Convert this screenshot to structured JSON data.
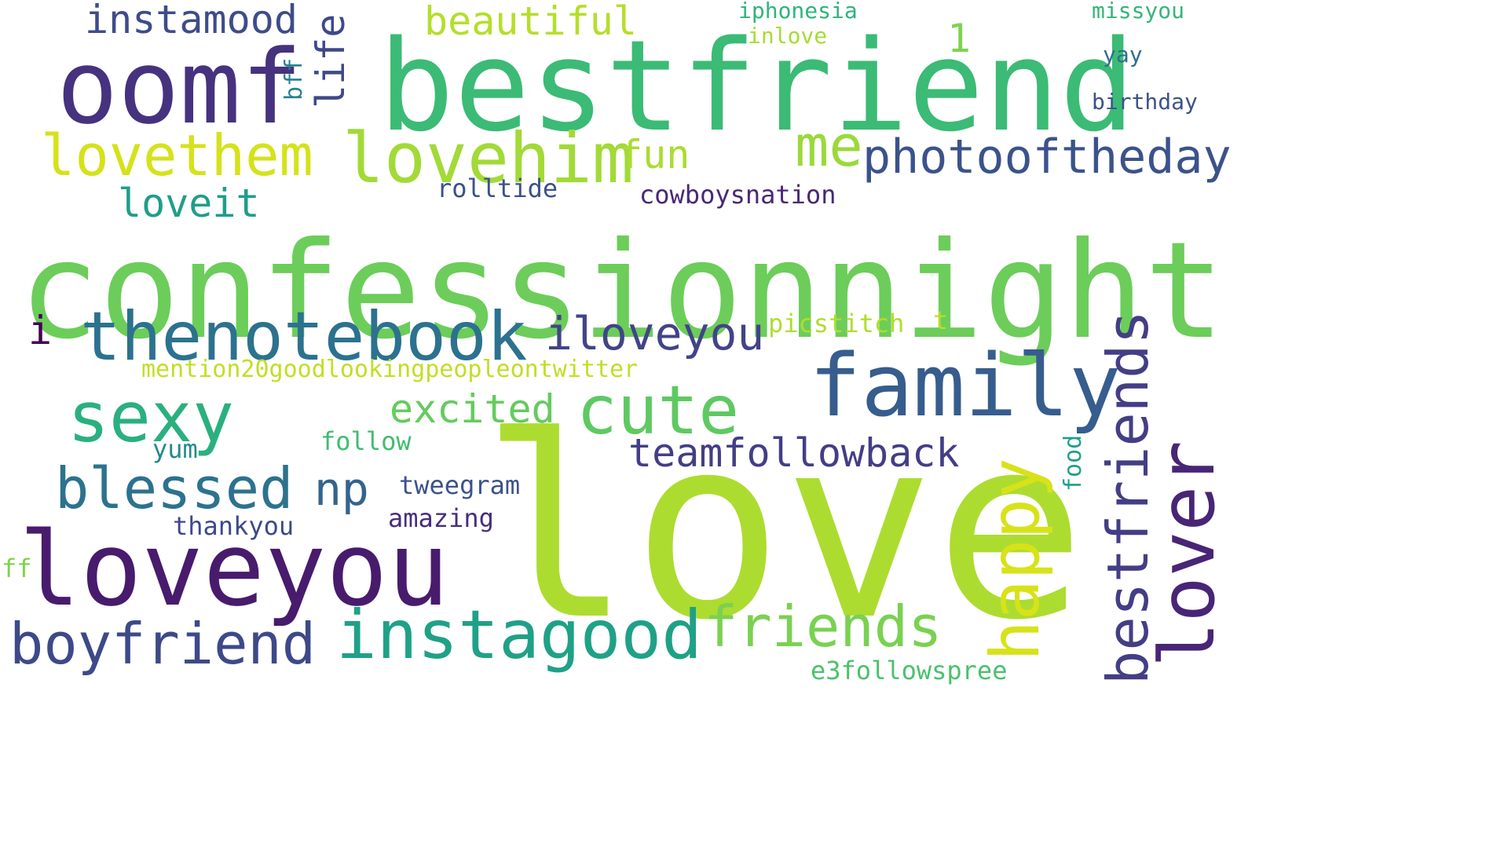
{
  "words": [
    {
      "text": "confessionnight",
      "color": "#6ccd5a"
    },
    {
      "text": "love",
      "color": "#addc30"
    },
    {
      "text": "bestfriend",
      "color": "#3bbb75"
    },
    {
      "text": "oomf",
      "color": "#46327e"
    },
    {
      "text": "loveyou",
      "color": "#481b6d"
    },
    {
      "text": "family",
      "color": "#365d8d"
    },
    {
      "text": "lovehim",
      "color": "#a2da37"
    },
    {
      "text": "lovethem",
      "color": "#d5e21a"
    },
    {
      "text": "thenotebook",
      "color": "#2c728e"
    },
    {
      "text": "sexy",
      "color": "#2ab07f"
    },
    {
      "text": "cute",
      "color": "#5ec962"
    },
    {
      "text": "instagood",
      "color": "#1fa187"
    },
    {
      "text": "friends",
      "color": "#7ad151"
    },
    {
      "text": "boyfriend",
      "color": "#3e4989"
    },
    {
      "text": "blessed",
      "color": "#2c728e"
    },
    {
      "text": "lover",
      "color": "#482576"
    },
    {
      "text": "bestfriends",
      "color": "#433e85"
    },
    {
      "text": "happy",
      "color": "#d8e219"
    },
    {
      "text": "photooftheday",
      "color": "#3b528b"
    },
    {
      "text": "teamfollowback",
      "color": "#433e85"
    },
    {
      "text": "iloveyou",
      "color": "#414487"
    },
    {
      "text": "me",
      "color": "#9bd93c"
    },
    {
      "text": "instamood",
      "color": "#3e4c8a"
    },
    {
      "text": "beautiful",
      "color": "#b5de2b"
    },
    {
      "text": "excited",
      "color": "#65cb5e"
    },
    {
      "text": "loveit",
      "color": "#1f9e89"
    },
    {
      "text": "fun",
      "color": "#aadc32"
    },
    {
      "text": "life",
      "color": "#3f4889"
    },
    {
      "text": "np",
      "color": "#32648e"
    },
    {
      "text": "i",
      "color": "#440154"
    },
    {
      "text": "1",
      "color": "#7fd34e"
    },
    {
      "text": "cowboysnation",
      "color": "#482878"
    },
    {
      "text": "rolltide",
      "color": "#3b518b"
    },
    {
      "text": "mention20goodlookingpeopleontwitter",
      "color": "#c0df25"
    },
    {
      "text": "picstitch",
      "color": "#b0dd2f"
    },
    {
      "text": "e3followspree",
      "color": "#4ac16d"
    },
    {
      "text": "tweegram",
      "color": "#3b528b"
    },
    {
      "text": "amazing",
      "color": "#472d7b"
    },
    {
      "text": "follow",
      "color": "#40bd72"
    },
    {
      "text": "thankyou",
      "color": "#3e4989"
    },
    {
      "text": "yum",
      "color": "#238a8d"
    },
    {
      "text": "ff",
      "color": "#7fd34e"
    },
    {
      "text": "iphonesia",
      "color": "#2fb47c"
    },
    {
      "text": "inlove",
      "color": "#a8db34"
    },
    {
      "text": "missyou",
      "color": "#34b679"
    },
    {
      "text": "yay",
      "color": "#2d708e"
    },
    {
      "text": "birthday",
      "color": "#3b528b"
    },
    {
      "text": "bff",
      "color": "#26828e"
    },
    {
      "text": "food",
      "color": "#1fa088"
    },
    {
      "text": "t",
      "color": "#b8de29"
    }
  ]
}
